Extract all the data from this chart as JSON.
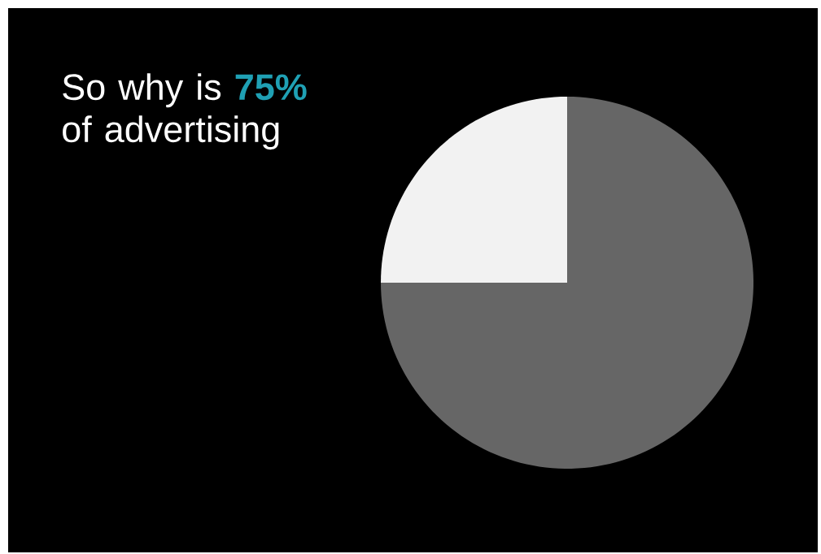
{
  "chart_data": {
    "type": "pie",
    "title": "So why is **75%** of advertising",
    "categories": [
      null,
      null
    ],
    "values": [
      75,
      25
    ],
    "colors": [
      "#666666",
      "#f2f2f2"
    ]
  }
}
